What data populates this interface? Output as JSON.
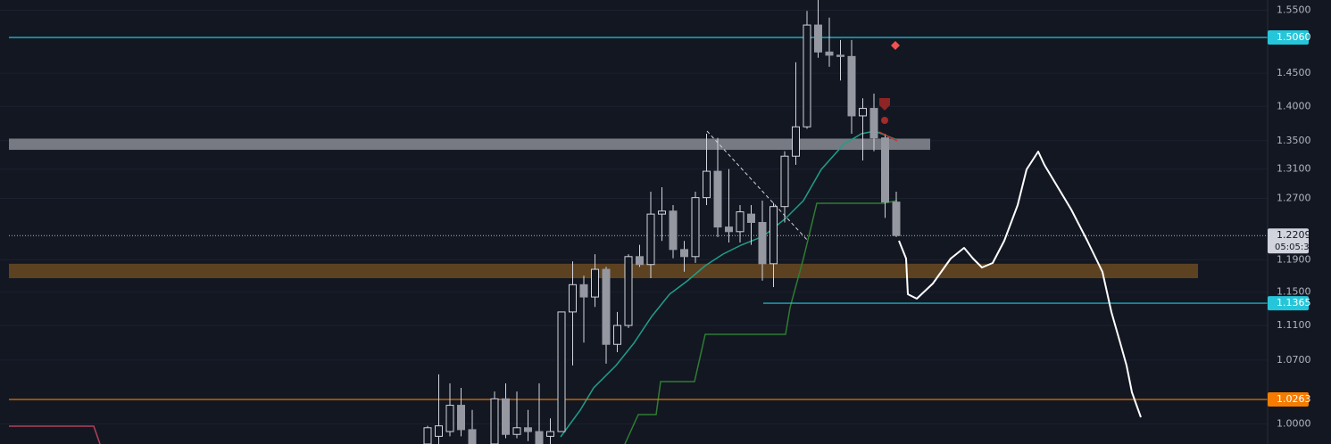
{
  "chart_data": {
    "type": "candlestick",
    "log_scale": true,
    "ylim": [
      0.979,
      1.567
    ],
    "yticks": [
      {
        "value": 1.55,
        "label": "1.5500"
      },
      {
        "value": 1.45,
        "label": "1.4500"
      },
      {
        "value": 1.4,
        "label": "1.4000"
      },
      {
        "value": 1.35,
        "label": "1.3500"
      },
      {
        "value": 1.31,
        "label": "1.3100"
      },
      {
        "value": 1.27,
        "label": "1.2700"
      },
      {
        "value": 1.19,
        "label": "1.1900"
      },
      {
        "value": 1.15,
        "label": "1.1500"
      },
      {
        "value": 1.11,
        "label": "1.1100"
      },
      {
        "value": 1.07,
        "label": "1.0700"
      },
      {
        "value": 1.0,
        "label": "1.0000"
      }
    ],
    "up_color": "#d1d4dc",
    "down_color": "#9598a1",
    "open": [
      0.979,
      0.987,
      0.992,
      1.02,
      0.994,
      null,
      0.979,
      1.027,
      0.989,
      0.996,
      0.992,
      0.987,
      0.992,
      1.126,
      1.159,
      1.144,
      1.178,
      1.088,
      1.11,
      1.194,
      1.184,
      1.249,
      1.253,
      1.203,
      1.194,
      1.271,
      1.307,
      1.232,
      1.226,
      1.249,
      1.238,
      1.185,
      1.259,
      1.328,
      1.37,
      1.526,
      1.483,
      1.478,
      1.476,
      1.386,
      1.397,
      1.354,
      1.265
    ],
    "high": [
      0.998,
      1.054,
      1.044,
      1.039,
      1.015,
      null,
      1.035,
      1.044,
      1.035,
      1.015,
      1.044,
      1.006,
      1.126,
      1.188,
      1.17,
      1.197,
      1.181,
      1.126,
      1.197,
      1.209,
      1.279,
      1.285,
      1.261,
      1.214,
      1.279,
      1.36,
      1.354,
      1.31,
      1.261,
      1.261,
      1.267,
      1.264,
      1.335,
      1.467,
      1.549,
      1.567,
      1.538,
      1.502,
      1.502,
      1.412,
      1.419,
      1.36,
      1.279
    ],
    "low": [
      0.979,
      0.979,
      0.987,
      0.987,
      0.979,
      null,
      0.979,
      0.985,
      0.985,
      0.982,
      0.979,
      0.979,
      0.992,
      1.064,
      1.09,
      1.132,
      1.066,
      1.079,
      1.107,
      1.181,
      1.167,
      1.214,
      1.192,
      1.175,
      1.186,
      1.261,
      1.219,
      1.212,
      1.212,
      1.209,
      1.164,
      1.156,
      1.238,
      1.316,
      1.367,
      1.474,
      1.46,
      1.439,
      1.36,
      1.322,
      1.335,
      1.244,
      1.219
    ],
    "close": [
      0.996,
      0.998,
      1.02,
      0.994,
      0.979,
      null,
      1.027,
      0.989,
      0.996,
      0.992,
      0.979,
      0.992,
      1.126,
      1.159,
      1.144,
      1.178,
      1.088,
      1.11,
      1.194,
      1.184,
      1.249,
      1.253,
      1.203,
      1.194,
      1.271,
      1.307,
      1.232,
      1.226,
      1.252,
      1.238,
      1.185,
      1.259,
      1.328,
      1.37,
      1.526,
      1.483,
      1.478,
      1.476,
      1.386,
      1.397,
      1.354,
      1.265,
      1.2209
    ],
    "last_price_label": "1.2209",
    "countdown": "05:05:30",
    "levels": [
      {
        "value": 1.506,
        "label": "1.5060",
        "color": "#26c6da",
        "start": "full"
      },
      {
        "value": 1.1365,
        "label": "1.1365",
        "color": "#26c6da",
        "start": "partial"
      },
      {
        "value": 1.0263,
        "label": "1.0263",
        "color": "#f57c00",
        "start": "full"
      }
    ],
    "zones": [
      {
        "from": 1.337,
        "to": 1.353,
        "color": "#8a8c93"
      },
      {
        "from": 1.167,
        "to": 1.185,
        "color": "#6b4a21"
      }
    ]
  }
}
